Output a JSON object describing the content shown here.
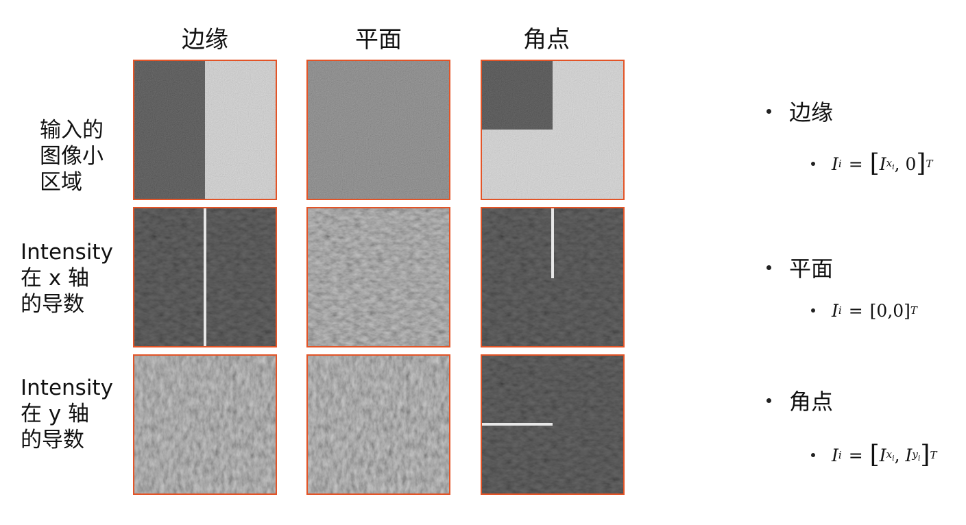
{
  "columns": [
    {
      "key": "edge",
      "label": "边缘"
    },
    {
      "key": "flat",
      "label": "平面"
    },
    {
      "key": "corner",
      "label": "角点"
    }
  ],
  "rows": [
    {
      "key": "input",
      "lines": [
        "输入的",
        "图像小",
        "区域"
      ]
    },
    {
      "key": "dx",
      "lines": [
        "Intensity",
        "在 x 轴",
        "的导数"
      ]
    },
    {
      "key": "dy",
      "lines": [
        "Intensity",
        "在 y 轴",
        "的导数"
      ]
    }
  ],
  "bullets": [
    {
      "label": "边缘",
      "formula": {
        "lhs": "I",
        "lhs_sub": "i",
        "a": "I",
        "a_sub": "x",
        "a_sub_sub": "i",
        "b": "0",
        "sup": "T"
      }
    },
    {
      "label": "平面",
      "formula": {
        "lhs": "I",
        "lhs_sub": "i",
        "vector": "[0,0]",
        "sup": "T"
      }
    },
    {
      "label": "角点",
      "formula": {
        "lhs": "I",
        "lhs_sub": "i",
        "a": "I",
        "a_sub": "x",
        "a_sub_sub": "i",
        "b": "I",
        "b_sub": "y",
        "b_sub_sub": "i",
        "sup": "T"
      }
    }
  ],
  "colors": {
    "tile_border": "#e35427"
  }
}
